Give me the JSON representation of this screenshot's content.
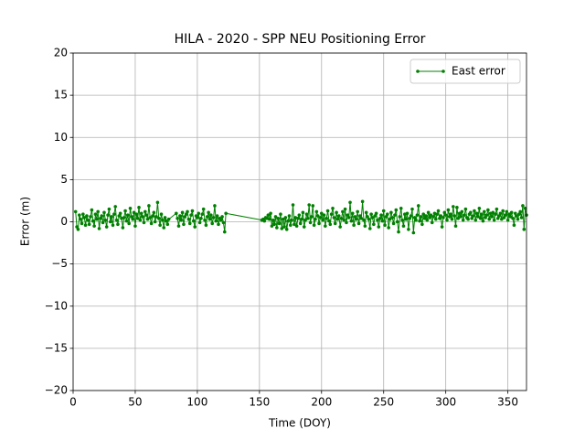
{
  "chart_data": {
    "type": "line",
    "title": "HILA - 2020 - SPP NEU Positioning Error",
    "x_label": "Time (DOY)",
    "y_label": "Error (m)",
    "xlim": [
      0,
      365
    ],
    "xticks": [
      0,
      50,
      100,
      150,
      200,
      250,
      300,
      350
    ],
    "ylim": [
      -20,
      20
    ],
    "yticks": [
      {
        "value": -20,
        "label": "−20"
      },
      {
        "value": -15,
        "label": "−15"
      },
      {
        "value": -10,
        "label": "−10"
      },
      {
        "value": -5,
        "label": "−5"
      },
      0,
      5,
      10,
      15,
      20
    ],
    "grid": true,
    "legend": "upper right",
    "x": [
      2,
      3,
      4,
      5,
      6,
      7,
      8,
      9,
      10,
      11,
      12,
      13,
      14,
      15,
      16,
      17,
      18,
      19,
      20,
      21,
      22,
      23,
      24,
      25,
      26,
      27,
      28,
      29,
      30,
      31,
      32,
      33,
      34,
      35,
      36,
      37,
      38,
      39,
      40,
      41,
      42,
      43,
      44,
      45,
      46,
      47,
      48,
      49,
      50,
      51,
      52,
      53,
      54,
      55,
      56,
      57,
      58,
      59,
      60,
      61,
      62,
      63,
      64,
      65,
      66,
      67,
      68,
      69,
      70,
      71,
      72,
      73,
      74,
      75,
      76,
      77,
      83,
      84,
      85,
      86,
      87,
      88,
      89,
      90,
      91,
      92,
      93,
      94,
      95,
      96,
      97,
      98,
      99,
      100,
      101,
      102,
      103,
      104,
      105,
      106,
      107,
      108,
      109,
      110,
      111,
      112,
      113,
      114,
      115,
      116,
      117,
      118,
      119,
      120,
      121,
      122,
      123,
      152,
      153,
      154,
      155,
      156,
      157,
      158,
      159,
      160,
      161,
      162,
      163,
      164,
      165,
      166,
      167,
      168,
      169,
      170,
      171,
      172,
      173,
      174,
      175,
      176,
      177,
      178,
      179,
      180,
      181,
      182,
      183,
      184,
      185,
      186,
      187,
      188,
      189,
      190,
      191,
      192,
      193,
      194,
      195,
      196,
      197,
      198,
      199,
      200,
      201,
      202,
      203,
      204,
      205,
      206,
      207,
      208,
      209,
      210,
      211,
      212,
      213,
      214,
      215,
      216,
      217,
      218,
      219,
      220,
      221,
      222,
      223,
      224,
      225,
      226,
      227,
      228,
      229,
      230,
      231,
      232,
      233,
      234,
      235,
      236,
      237,
      238,
      239,
      240,
      241,
      242,
      243,
      244,
      245,
      246,
      247,
      248,
      249,
      250,
      251,
      252,
      253,
      254,
      255,
      256,
      257,
      258,
      259,
      260,
      261,
      262,
      263,
      264,
      265,
      266,
      267,
      268,
      269,
      270,
      271,
      272,
      273,
      274,
      275,
      276,
      277,
      278,
      279,
      280,
      281,
      282,
      283,
      284,
      285,
      286,
      287,
      288,
      289,
      290,
      291,
      292,
      293,
      294,
      295,
      296,
      297,
      298,
      299,
      300,
      301,
      302,
      303,
      304,
      305,
      306,
      307,
      308,
      309,
      310,
      311,
      312,
      313,
      314,
      315,
      316,
      317,
      318,
      319,
      320,
      321,
      322,
      323,
      324,
      325,
      326,
      327,
      328,
      329,
      330,
      331,
      332,
      333,
      334,
      335,
      336,
      337,
      338,
      339,
      340,
      341,
      342,
      343,
      344,
      345,
      346,
      347,
      348,
      349,
      350,
      351,
      352,
      353,
      354,
      355,
      356,
      357,
      358,
      359,
      360,
      361,
      362,
      363,
      364,
      365
    ],
    "series": [
      {
        "name": "East error",
        "color": "#008000",
        "values": [
          1.2,
          -0.6,
          -0.9,
          0.8,
          0.3,
          -0.2,
          0.9,
          0.5,
          -0.4,
          0.7,
          0.2,
          -0.3,
          0.6,
          1.4,
          0.1,
          -0.5,
          0.9,
          0.3,
          1.2,
          -0.8,
          0.4,
          0.7,
          -0.1,
          1.1,
          0.2,
          -0.6,
          0.8,
          1.5,
          0.0,
          0.6,
          -0.4,
          0.9,
          1.8,
          0.2,
          -0.3,
          0.7,
          1.0,
          0.4,
          -0.7,
          0.5,
          1.3,
          0.1,
          0.8,
          -0.2,
          1.6,
          0.6,
          0.3,
          1.1,
          -0.5,
          0.9,
          0.4,
          1.7,
          0.2,
          1.0,
          0.6,
          -0.1,
          1.2,
          0.8,
          0.3,
          1.9,
          0.5,
          -0.2,
          0.7,
          1.1,
          0.0,
          0.6,
          2.3,
          0.4,
          -0.4,
          0.9,
          0.2,
          -0.7,
          0.5,
          0.1,
          -0.3,
          0.3,
          1.0,
          0.4,
          -0.5,
          0.7,
          0.2,
          1.1,
          -0.3,
          0.6,
          0.9,
          1.2,
          0.3,
          -0.2,
          0.8,
          1.3,
          0.1,
          -0.6,
          0.7,
          0.5,
          1.0,
          -0.1,
          0.4,
          0.9,
          1.5,
          0.2,
          -0.4,
          0.6,
          1.1,
          0.3,
          0.8,
          -0.2,
          0.5,
          1.9,
          0.1,
          0.7,
          -0.3,
          0.4,
          0.2,
          0.6,
          -0.1,
          -1.2,
          1.0,
          0.2,
          0.3,
          0.1,
          0.5,
          0.4,
          0.8,
          0.3,
          1.0,
          -0.5,
          0.2,
          -0.3,
          0.6,
          -0.7,
          0.4,
          -0.2,
          0.9,
          -0.8,
          0.3,
          -0.6,
          0.5,
          -0.9,
          0.1,
          0.7,
          -0.4,
          0.2,
          2.0,
          -0.3,
          0.5,
          -0.5,
          0.4,
          0.8,
          -0.2,
          0.3,
          1.1,
          -0.6,
          0.2,
          0.9,
          0.4,
          2.0,
          -0.1,
          0.6,
          1.9,
          -0.4,
          0.3,
          1.2,
          0.7,
          -0.2,
          0.5,
          1.0,
          0.2,
          0.8,
          -0.5,
          0.4,
          1.3,
          0.1,
          -0.3,
          0.9,
          1.6,
          0.5,
          -0.2,
          1.1,
          0.3,
          0.7,
          -0.6,
          0.4,
          1.2,
          0.2,
          1.5,
          -0.1,
          0.8,
          0.5,
          2.3,
          0.1,
          1.0,
          -0.4,
          0.6,
          0.3,
          1.2,
          -0.2,
          0.7,
          0.4,
          2.4,
          0.2,
          -0.5,
          1.1,
          0.6,
          0.3,
          -0.8,
          0.9,
          0.5,
          -0.3,
          0.7,
          1.0,
          0.2,
          -0.6,
          0.4,
          0.8,
          0.1,
          1.3,
          -0.4,
          0.6,
          0.9,
          -0.7,
          0.3,
          1.1,
          0.5,
          -0.2,
          0.8,
          1.4,
          0.0,
          -1.2,
          0.6,
          1.6,
          0.2,
          -0.5,
          0.9,
          0.3,
          1.0,
          -0.9,
          0.4,
          0.7,
          1.5,
          -1.3,
          0.5,
          0.2,
          0.8,
          1.9,
          0.1,
          0.6,
          -0.3,
          0.9,
          0.4,
          0.7,
          0.2,
          1.1,
          0.5,
          0.8,
          -0.1,
          0.6,
          1.0,
          0.3,
          0.9,
          1.3,
          0.4,
          0.7,
          -0.6,
          0.5,
          1.1,
          0.8,
          0.2,
          1.4,
          0.6,
          0.9,
          0.3,
          1.8,
          0.7,
          -0.5,
          1.7,
          0.4,
          1.0,
          0.6,
          1.2,
          0.2,
          0.8,
          1.5,
          0.5,
          0.3,
          0.9,
          1.1,
          0.4,
          0.7,
          1.3,
          0.2,
          1.0,
          0.6,
          1.6,
          0.4,
          0.9,
          0.1,
          1.2,
          0.5,
          0.8,
          1.4,
          0.3,
          1.0,
          0.6,
          1.1,
          0.2,
          0.9,
          1.5,
          0.4,
          0.7,
          1.0,
          0.3,
          1.3,
          0.5,
          0.8,
          1.2,
          0.2,
          0.9,
          0.6,
          1.1,
          0.4,
          -0.4,
          1.0,
          0.7,
          0.3,
          0.9,
          1.2,
          0.5,
          1.9,
          -0.9,
          1.6,
          0.8
        ]
      }
    ]
  }
}
